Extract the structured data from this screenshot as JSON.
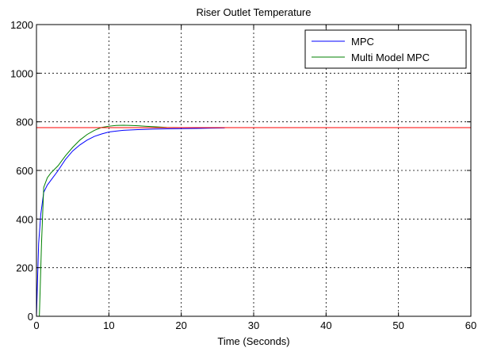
{
  "chart_data": {
    "type": "line",
    "title": "Riser Outlet Temperature",
    "xlabel": "Time (Seconds)",
    "ylabel": "",
    "xlim": [
      0,
      60
    ],
    "ylim": [
      0,
      1200
    ],
    "xticks": [
      0,
      10,
      20,
      30,
      40,
      50,
      60
    ],
    "yticks": [
      0,
      200,
      400,
      600,
      800,
      1000,
      1200
    ],
    "grid": true,
    "legend_position": "top-right",
    "series": [
      {
        "name": "MPC",
        "color": "#0000ff",
        "x": [
          0,
          0.3,
          0.6,
          1,
          1.5,
          2,
          3,
          4,
          5,
          6,
          7,
          8,
          9,
          10,
          11,
          12,
          14,
          16,
          18,
          20,
          22,
          24,
          26
        ],
        "y": [
          0,
          300,
          420,
          510,
          540,
          560,
          600,
          645,
          680,
          705,
          725,
          740,
          750,
          758,
          762,
          765,
          768,
          770,
          771,
          772,
          773,
          774,
          775
        ]
      },
      {
        "name": "Multi Model MPC",
        "color": "#008000",
        "x": [
          0,
          0.4,
          0.7,
          1,
          1.5,
          2,
          3,
          4,
          5,
          6,
          7,
          8,
          9,
          10,
          11,
          12,
          13,
          14,
          15,
          16,
          18,
          20,
          22,
          25
        ],
        "y": [
          0,
          0,
          300,
          530,
          570,
          590,
          620,
          660,
          695,
          725,
          748,
          765,
          777,
          782,
          785,
          786,
          785,
          784,
          782,
          780,
          777,
          776,
          776,
          776
        ]
      },
      {
        "name": "",
        "color": "#ff0000",
        "x": [
          0,
          60
        ],
        "y": [
          776,
          776
        ]
      }
    ]
  }
}
